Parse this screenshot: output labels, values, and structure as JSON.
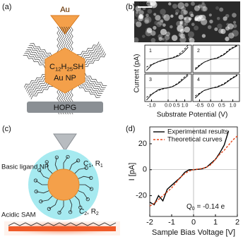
{
  "panel_labels": [
    "(a)",
    "(b)",
    "(c)",
    "(d)"
  ],
  "panel_a": {
    "tip": "Au",
    "formula": [
      "C",
      "12",
      "H",
      "25",
      "SH"
    ],
    "particle": "Au NP",
    "substrate": "HOPG"
  },
  "panel_b": {
    "scale_bar": "10 nm",
    "x_label": "Substrate Potential (V)",
    "y_label": "Current (pA)"
  },
  "panel_c": {
    "particle": "Basic ligand NP",
    "shell": [
      "C",
      "1",
      ", R",
      "1"
    ],
    "sam_params": [
      "C",
      "2",
      ", R",
      "2"
    ],
    "sam": "Acidic SAM"
  },
  "chart_data": [
    {
      "type": "line",
      "label": "1",
      "x": [
        -1.3,
        -1,
        -0.6,
        -0.3,
        0,
        0.3,
        0.6,
        0.9,
        1.2
      ],
      "series": [
        {
          "color": "#000000",
          "style": "solid",
          "values": [
            -0.85,
            -0.45,
            -0.2,
            -0.08,
            0,
            0.08,
            0.2,
            0.45,
            0.85
          ]
        },
        {
          "color": "#000000",
          "style": "dashed",
          "values": [
            -0.6,
            -0.4,
            -0.22,
            -0.1,
            0,
            0.1,
            0.28,
            0.6,
            1
          ]
        }
      ],
      "xlim": [
        -1.4,
        1.4
      ],
      "ylim": [
        -1,
        1
      ],
      "zero_lines": true
    },
    {
      "type": "line",
      "label": "2",
      "x": [
        -0.7,
        -0.5,
        -0.3,
        0,
        0.3,
        0.6,
        0.9,
        1.2
      ],
      "series": [
        {
          "color": "#000000",
          "style": "solid",
          "values": [
            -0.8,
            -0.5,
            -0.25,
            -0.05,
            0.05,
            0.3,
            0.7,
            0.95
          ]
        },
        {
          "color": "#000000",
          "style": "dashed",
          "values": [
            -0.7,
            -0.45,
            -0.25,
            -0.05,
            0.08,
            0.35,
            0.75,
            1
          ]
        }
      ],
      "xlim": [
        -0.8,
        1.3
      ],
      "ylim": [
        -1,
        1
      ],
      "zero_lines": true
    },
    {
      "type": "line",
      "label": "3",
      "x": [
        -1.3,
        -1,
        -0.6,
        -0.3,
        0,
        0.3,
        0.6,
        0.9,
        1.2
      ],
      "series": [
        {
          "color": "#000000",
          "style": "solid",
          "values": [
            -0.9,
            -0.5,
            -0.15,
            -0.05,
            0,
            0.1,
            0.3,
            0.6,
            0.9
          ]
        },
        {
          "color": "#000000",
          "style": "dashed",
          "values": [
            -0.7,
            -0.45,
            -0.2,
            -0.08,
            0,
            0.12,
            0.35,
            0.7,
            1
          ]
        }
      ],
      "xlim": [
        -1.4,
        1.4
      ],
      "ylim": [
        -1,
        1
      ],
      "zero_lines": true,
      "xticks": [
        {
          "value": -1,
          "label": "-1.0"
        },
        {
          "value": 0,
          "label": "0.0"
        },
        0.5,
        {
          "value": 1,
          "label": "1.0"
        }
      ]
    },
    {
      "type": "line",
      "label": "4",
      "x": [
        -0.7,
        -0.5,
        -0.3,
        0,
        0.3,
        0.6,
        0.9,
        1.2
      ],
      "series": [
        {
          "color": "#000000",
          "style": "solid",
          "values": [
            -0.75,
            -0.45,
            -0.2,
            -0.05,
            0.05,
            0.25,
            0.6,
            0.9
          ]
        },
        {
          "color": "#000000",
          "style": "dashed",
          "values": [
            -0.6,
            -0.4,
            -0.2,
            -0.05,
            0.08,
            0.3,
            0.65,
            0.95
          ]
        }
      ],
      "xlim": [
        -0.8,
        1.3
      ],
      "ylim": [
        -1,
        1
      ],
      "zero_lines": true,
      "xticks": [
        -0.5,
        {
          "value": 0,
          "label": "0.0"
        },
        0.5,
        {
          "value": 1,
          "label": "1.0"
        }
      ]
    },
    {
      "type": "line",
      "x_label": "Sample Bias Voltage [V]",
      "y_label": "I [pA]",
      "x": [
        -2,
        -1.8,
        -1.6,
        -1.4,
        -1.2,
        -1,
        -0.8,
        -0.6,
        -0.4,
        -0.2,
        0,
        0.2,
        0.4,
        0.6,
        0.8,
        1,
        1.2,
        1.4,
        1.6,
        1.8,
        2
      ],
      "series": [
        {
          "name": "Experimental results",
          "color": "#000000",
          "style": "solid",
          "values": [
            -25,
            -27,
            -20,
            -24,
            -15,
            -12,
            -9,
            -6,
            -2,
            0,
            0,
            0.3,
            0.8,
            2,
            5,
            8,
            13,
            19,
            30,
            null,
            null
          ]
        },
        {
          "name": "Theoretical curves",
          "color": "#e8481c",
          "style": "dashed",
          "values": [
            -28,
            -26,
            -23,
            -20,
            -17,
            -14,
            -10,
            -6,
            -3,
            -1,
            0,
            0.5,
            1,
            2,
            4,
            8,
            12,
            15,
            19,
            23,
            26
          ]
        }
      ],
      "xlim": [
        -2,
        2
      ],
      "ylim": [
        -36,
        33
      ],
      "xticks": [
        -2,
        -1,
        0,
        1,
        2
      ],
      "yticks": [
        -20,
        0,
        20
      ],
      "zero_lines": true,
      "legend": "upper left",
      "annotation": [
        "Q",
        "0",
        " = -0.14 e"
      ]
    }
  ]
}
